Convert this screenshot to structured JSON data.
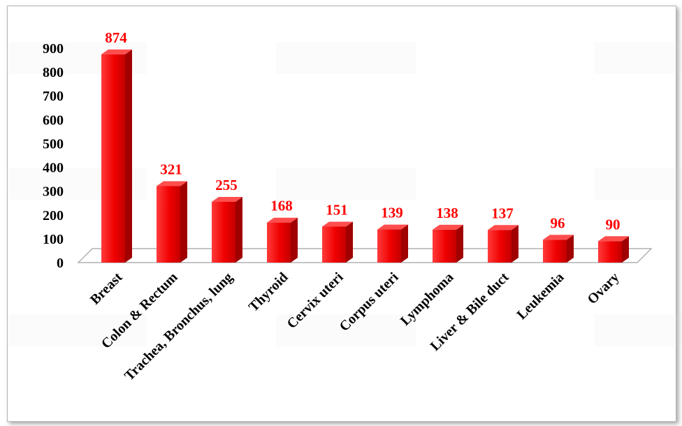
{
  "chart_data": {
    "type": "bar",
    "categories": [
      "Breast",
      "Colon & Rectum",
      "Trachea, Bronchus, lung",
      "Thyroid",
      "Cervix uteri",
      "Corpus uteri",
      "Lymphoma",
      "Liver & Bile duct",
      "Leukemia",
      "Ovary"
    ],
    "values": [
      874,
      321,
      255,
      168,
      151,
      139,
      138,
      137,
      96,
      90
    ],
    "ylim": [
      0,
      900
    ],
    "yticks": [
      0,
      100,
      200,
      300,
      400,
      500,
      600,
      700,
      800,
      900
    ],
    "bar_color": "#ff1a1a",
    "label_color": "#ff0000",
    "grid": false,
    "legend": "none",
    "title": "",
    "xlabel": "",
    "ylabel": ""
  }
}
